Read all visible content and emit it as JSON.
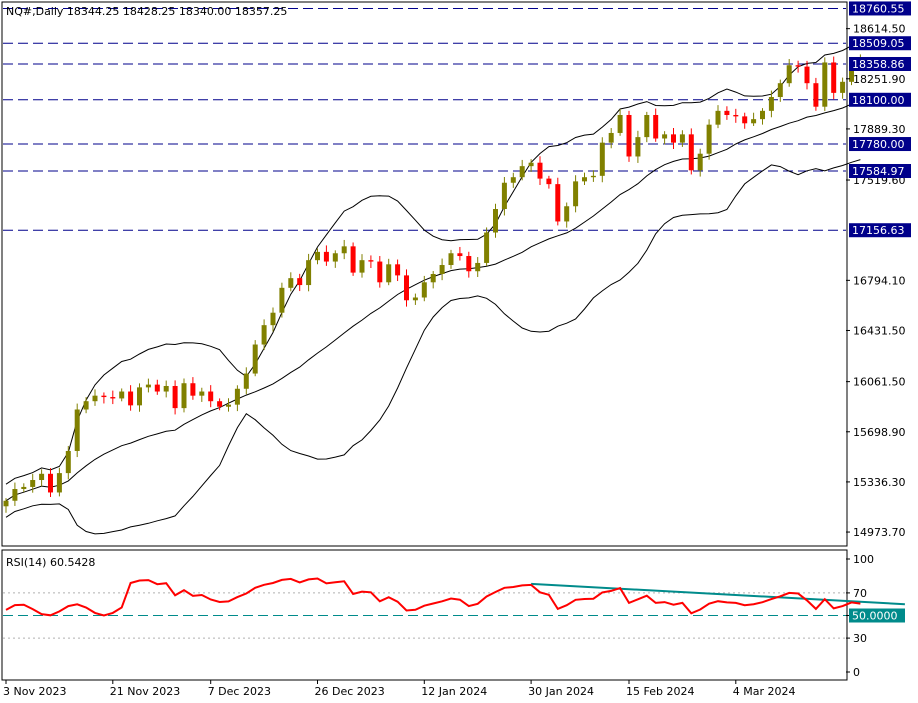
{
  "header": {
    "symbol_line": "NQ#,Daily  18344.25 18428.25 18340.00 18357.25"
  },
  "rsi": {
    "label": "RSI(14) 60.5428",
    "level_label": "50.0000",
    "axis_labels": [
      "100",
      "70",
      "50",
      "30",
      "0"
    ],
    "current": 60.5428
  },
  "colors": {
    "bull": "#808000",
    "bear": "#ff0000",
    "level_line": "#00008b",
    "rsi_line": "#ff0000",
    "trend_line": "#008b8b",
    "bands": "#000000"
  },
  "chart_data": {
    "type": "candlestick",
    "symbol": "NQ#",
    "timeframe": "Daily",
    "ohlc_last": {
      "open": 18344.25,
      "high": 18428.25,
      "low": 18340.0,
      "close": 18357.25
    },
    "ylim": [
      14880,
      18800
    ],
    "price_axis_labels": [
      "18614.50",
      "18251.90",
      "17889.30",
      "17519.60",
      "16794.10",
      "16431.50",
      "16061.50",
      "15698.90",
      "15336.30",
      "14973.70"
    ],
    "level_lines": [
      18760.55,
      18509.05,
      18358.86,
      18100.0,
      17780.0,
      17584.97,
      17156.63
    ],
    "level_labels": [
      "18760.55",
      "18509.05",
      "18358.86",
      "18100.00",
      "17780.00",
      "17584.97",
      "17156.63"
    ],
    "date_labels": [
      {
        "text": "3 Nov 2023",
        "index": 0
      },
      {
        "text": "21 Nov 2023",
        "index": 12
      },
      {
        "text": "7 Dec 2023",
        "index": 23
      },
      {
        "text": "26 Dec 2023",
        "index": 35
      },
      {
        "text": "12 Jan 2024",
        "index": 47
      },
      {
        "text": "30 Jan 2024",
        "index": 59
      },
      {
        "text": "15 Feb 2024",
        "index": 70
      },
      {
        "text": "4 Mar 2024",
        "index": 82
      }
    ],
    "closes": [
      15200,
      15285,
      15300,
      15350,
      15395,
      15260,
      15400,
      15560,
      15860,
      15920,
      15960,
      15950,
      15940,
      15990,
      15890,
      16020,
      16040,
      15990,
      16030,
      15870,
      16050,
      15960,
      15990,
      15920,
      15880,
      15895,
      16010,
      16120,
      16330,
      16470,
      16560,
      16740,
      16810,
      16760,
      16940,
      17000,
      16930,
      16990,
      17040,
      16850,
      16940,
      16930,
      16780,
      16910,
      16830,
      16650,
      16670,
      16780,
      16840,
      16905,
      16990,
      16970,
      16860,
      16920,
      17140,
      17310,
      17500,
      17540,
      17620,
      17645,
      17530,
      17490,
      17220,
      17330,
      17510,
      17540,
      17550,
      17790,
      17860,
      17990,
      17690,
      17830,
      17990,
      17820,
      17850,
      17790,
      17850,
      17590,
      17710,
      17920,
      18020,
      17990,
      17980,
      17930,
      17960,
      18020,
      18120,
      18220,
      18350,
      18340,
      18220,
      18050,
      18370,
      18150,
      18230,
      18362,
      18357
    ],
    "volatility": 55,
    "bollinger": {
      "period": 20,
      "deviations": 2
    },
    "rsi_period": 14,
    "rsi_ylim": [
      0,
      100
    ],
    "rsi_levels": [
      70,
      50,
      30
    ],
    "rsi_trendline": [
      {
        "index": 59,
        "value": 78
      },
      {
        "index": 101,
        "value": 60
      }
    ]
  }
}
